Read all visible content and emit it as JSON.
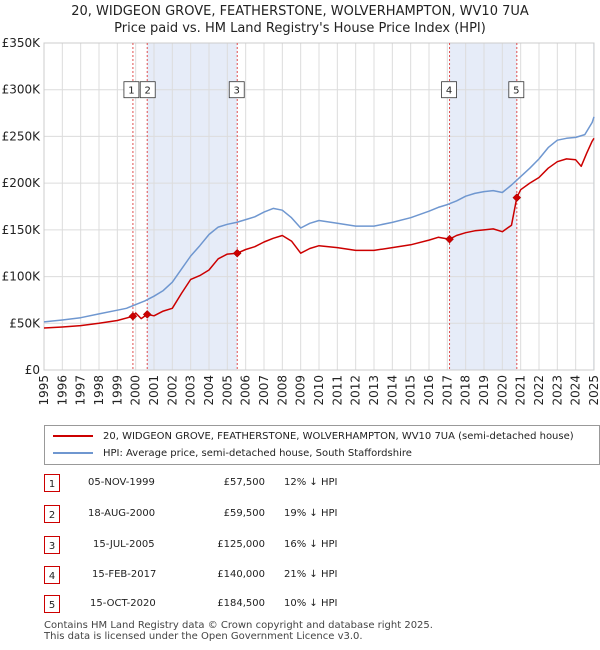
{
  "title_line1": "20, WIDGEON GROVE, FEATHERSTONE, WOLVERHAMPTON, WV10 7UA",
  "title_line2": "Price paid vs. HM Land Registry's House Price Index (HPI)",
  "colors": {
    "price": "#cc0000",
    "hpi": "#6f97d0",
    "band": "#e6ecf8",
    "vline": "#e05050"
  },
  "chart_data": {
    "type": "line",
    "x_range": [
      1995,
      2025
    ],
    "ylim": [
      0,
      350000
    ],
    "y_ticks": [
      {
        "value": 0,
        "label": "£0"
      },
      {
        "value": 50000,
        "label": "£50K"
      },
      {
        "value": 100000,
        "label": "£100K"
      },
      {
        "value": 150000,
        "label": "£150K"
      },
      {
        "value": 200000,
        "label": "£200K"
      },
      {
        "value": 250000,
        "label": "£250K"
      },
      {
        "value": 300000,
        "label": "£300K"
      },
      {
        "value": 350000,
        "label": "£350K"
      }
    ],
    "x_ticks": [
      "1995",
      "1996",
      "1997",
      "1998",
      "1999",
      "2000",
      "2001",
      "2002",
      "2003",
      "2004",
      "2005",
      "2006",
      "2007",
      "2008",
      "2009",
      "2010",
      "2011",
      "2012",
      "2013",
      "2014",
      "2015",
      "2016",
      "2017",
      "2018",
      "2019",
      "2020",
      "2021",
      "2022",
      "2023",
      "2024",
      "2025"
    ],
    "series": [
      {
        "name": "20, WIDGEON GROVE, FEATHERSTONE, WOLVERHAMPTON, WV10 7UA (semi-detached house)",
        "points": [
          [
            1995.0,
            45000
          ],
          [
            1996.0,
            46000
          ],
          [
            1997.0,
            47500
          ],
          [
            1998.0,
            50000
          ],
          [
            1999.0,
            53000
          ],
          [
            1999.85,
            57500
          ],
          [
            2000.0,
            61000
          ],
          [
            2000.3,
            55000
          ],
          [
            2000.63,
            59500
          ],
          [
            2001.0,
            58000
          ],
          [
            2001.5,
            63000
          ],
          [
            2002.0,
            66000
          ],
          [
            2002.5,
            82000
          ],
          [
            2003.0,
            97000
          ],
          [
            2003.5,
            101000
          ],
          [
            2004.0,
            107000
          ],
          [
            2004.5,
            119000
          ],
          [
            2005.0,
            124000
          ],
          [
            2005.54,
            125000
          ],
          [
            2006.0,
            129000
          ],
          [
            2006.5,
            132000
          ],
          [
            2007.0,
            137000
          ],
          [
            2007.5,
            141000
          ],
          [
            2008.0,
            144000
          ],
          [
            2008.5,
            138000
          ],
          [
            2009.0,
            125000
          ],
          [
            2009.5,
            130000
          ],
          [
            2010.0,
            133000
          ],
          [
            2011.0,
            131000
          ],
          [
            2012.0,
            128000
          ],
          [
            2013.0,
            128000
          ],
          [
            2014.0,
            131000
          ],
          [
            2015.0,
            134000
          ],
          [
            2016.0,
            139000
          ],
          [
            2016.5,
            142000
          ],
          [
            2017.12,
            140000
          ],
          [
            2017.5,
            144000
          ],
          [
            2018.0,
            147000
          ],
          [
            2018.5,
            149000
          ],
          [
            2019.0,
            150000
          ],
          [
            2019.5,
            151000
          ],
          [
            2020.0,
            148000
          ],
          [
            2020.5,
            155000
          ],
          [
            2020.79,
            184500
          ],
          [
            2021.0,
            193000
          ],
          [
            2021.5,
            200000
          ],
          [
            2022.0,
            206000
          ],
          [
            2022.5,
            216000
          ],
          [
            2023.0,
            223000
          ],
          [
            2023.5,
            226000
          ],
          [
            2024.0,
            225000
          ],
          [
            2024.3,
            218000
          ],
          [
            2024.6,
            232000
          ],
          [
            2024.9,
            245000
          ],
          [
            2025.0,
            248000
          ]
        ]
      },
      {
        "name": "HPI: Average price, semi-detached house, South Staffordshire",
        "points": [
          [
            1995.0,
            51500
          ],
          [
            1996.0,
            53500
          ],
          [
            1997.0,
            56000
          ],
          [
            1998.0,
            60000
          ],
          [
            1999.0,
            64000
          ],
          [
            1999.5,
            66000
          ],
          [
            2000.0,
            70000
          ],
          [
            2000.5,
            74000
          ],
          [
            2001.0,
            79000
          ],
          [
            2001.5,
            85000
          ],
          [
            2002.0,
            94000
          ],
          [
            2002.5,
            108000
          ],
          [
            2003.0,
            122000
          ],
          [
            2003.5,
            133000
          ],
          [
            2004.0,
            145000
          ],
          [
            2004.5,
            153000
          ],
          [
            2005.0,
            156000
          ],
          [
            2005.5,
            158000
          ],
          [
            2006.0,
            161000
          ],
          [
            2006.5,
            164000
          ],
          [
            2007.0,
            169000
          ],
          [
            2007.5,
            173000
          ],
          [
            2008.0,
            171000
          ],
          [
            2008.5,
            163000
          ],
          [
            2009.0,
            152000
          ],
          [
            2009.5,
            157000
          ],
          [
            2010.0,
            160000
          ],
          [
            2011.0,
            157000
          ],
          [
            2012.0,
            154000
          ],
          [
            2013.0,
            154000
          ],
          [
            2014.0,
            158000
          ],
          [
            2015.0,
            163000
          ],
          [
            2016.0,
            170000
          ],
          [
            2016.5,
            174000
          ],
          [
            2017.0,
            177000
          ],
          [
            2017.5,
            181000
          ],
          [
            2018.0,
            186000
          ],
          [
            2018.5,
            189000
          ],
          [
            2019.0,
            191000
          ],
          [
            2019.5,
            192000
          ],
          [
            2020.0,
            190000
          ],
          [
            2020.5,
            198000
          ],
          [
            2021.0,
            207000
          ],
          [
            2021.5,
            216000
          ],
          [
            2022.0,
            226000
          ],
          [
            2022.5,
            238000
          ],
          [
            2023.0,
            246000
          ],
          [
            2023.5,
            248000
          ],
          [
            2024.0,
            249000
          ],
          [
            2024.5,
            252000
          ],
          [
            2024.9,
            265000
          ],
          [
            2025.0,
            271000
          ]
        ]
      }
    ],
    "sales": [
      {
        "id": "1",
        "x": 1999.85,
        "price": 57500
      },
      {
        "id": "2",
        "x": 2000.63,
        "price": 59500
      },
      {
        "id": "3",
        "x": 2005.54,
        "price": 125000
      },
      {
        "id": "4",
        "x": 2017.12,
        "price": 140000
      },
      {
        "id": "5",
        "x": 2020.79,
        "price": 184500
      }
    ],
    "shaded_periods": [
      [
        2000.63,
        2005.54
      ],
      [
        2017.12,
        2020.79
      ],
      [
        2024.95,
        2025.0
      ]
    ],
    "marker_label_value": 300000
  },
  "legend": {
    "price_label": "20, WIDGEON GROVE, FEATHERSTONE, WOLVERHAMPTON, WV10 7UA (semi-detached house)",
    "hpi_label": "HPI: Average price, semi-detached house, South Staffordshire"
  },
  "table": [
    {
      "num": "1",
      "date": "05-NOV-1999",
      "price": "£57,500",
      "hpi": "12% ↓ HPI"
    },
    {
      "num": "2",
      "date": "18-AUG-2000",
      "price": "£59,500",
      "hpi": "19% ↓ HPI"
    },
    {
      "num": "3",
      "date": "15-JUL-2005",
      "price": "£125,000",
      "hpi": "16% ↓ HPI"
    },
    {
      "num": "4",
      "date": "15-FEB-2017",
      "price": "£140,000",
      "hpi": "21% ↓ HPI"
    },
    {
      "num": "5",
      "date": "15-OCT-2020",
      "price": "£184,500",
      "hpi": "10% ↓ HPI"
    }
  ],
  "footer": {
    "line1": "Contains HM Land Registry data © Crown copyright and database right 2025.",
    "line2": "This data is licensed under the Open Government Licence v3.0."
  }
}
